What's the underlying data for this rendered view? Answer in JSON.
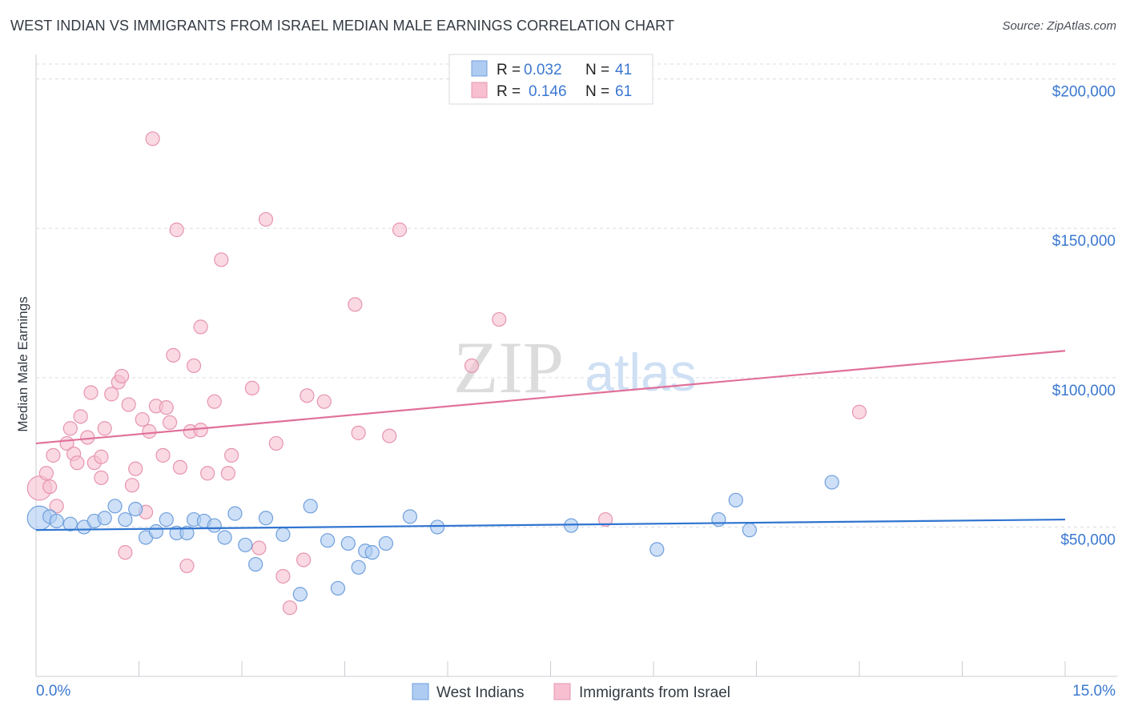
{
  "title": "WEST INDIAN VS IMMIGRANTS FROM ISRAEL MEDIAN MALE EARNINGS CORRELATION CHART",
  "source": "Source: ZipAtlas.com",
  "watermark": {
    "zip": "ZIP",
    "atlas": "atlas"
  },
  "colors": {
    "blue_fill": "#aecbf2",
    "blue_stroke": "#6f9fdc",
    "blue_line": "#2f74d0",
    "pink_fill": "#f7bfd0",
    "pink_stroke": "#e694b0",
    "pink_line": "#e0709a",
    "value_text": "#3b78d0",
    "grid": "#d9dce1"
  },
  "legend": {
    "rows": [
      {
        "r_label": "R =",
        "r_value": "0.032",
        "n_label": "N =",
        "n_value": "41"
      },
      {
        "r_label": "R =",
        "r_value": "0.146",
        "n_label": "N =",
        "n_value": "61"
      }
    ]
  },
  "chart_data": {
    "type": "scatter",
    "title": "WEST INDIAN VS IMMIGRANTS FROM ISRAEL MEDIAN MALE EARNINGS CORRELATION CHART",
    "xlabel": "",
    "ylabel": "Median Male Earnings",
    "xlim": [
      0,
      15
    ],
    "ylim": [
      0,
      205000
    ],
    "x_tick_labels": [
      "0.0%",
      "15.0%"
    ],
    "y_ticks": [
      50000,
      100000,
      150000,
      200000
    ],
    "y_tick_labels": [
      "$50,000",
      "$100,000",
      "$150,000",
      "$200,000"
    ],
    "grid": true,
    "legend_position": "top-center",
    "series": [
      {
        "name": "West Indians",
        "r": 0.032,
        "n": 41,
        "trend": {
          "x": [
            0,
            15
          ],
          "y": [
            49000,
            52500
          ]
        },
        "points": [
          {
            "x": 0.05,
            "y": 53000,
            "big": true
          },
          {
            "x": 0.2,
            "y": 53500
          },
          {
            "x": 0.3,
            "y": 52000
          },
          {
            "x": 0.5,
            "y": 51000
          },
          {
            "x": 0.7,
            "y": 50000
          },
          {
            "x": 0.85,
            "y": 52000
          },
          {
            "x": 1.0,
            "y": 53000
          },
          {
            "x": 1.15,
            "y": 57000
          },
          {
            "x": 1.3,
            "y": 52500
          },
          {
            "x": 1.45,
            "y": 56000
          },
          {
            "x": 1.6,
            "y": 46500
          },
          {
            "x": 1.75,
            "y": 48500
          },
          {
            "x": 1.9,
            "y": 52500
          },
          {
            "x": 2.05,
            "y": 48000
          },
          {
            "x": 2.2,
            "y": 48000
          },
          {
            "x": 2.3,
            "y": 52500
          },
          {
            "x": 2.45,
            "y": 52000
          },
          {
            "x": 2.6,
            "y": 50500
          },
          {
            "x": 2.75,
            "y": 46500
          },
          {
            "x": 2.9,
            "y": 54500
          },
          {
            "x": 3.05,
            "y": 44000
          },
          {
            "x": 3.2,
            "y": 37500
          },
          {
            "x": 3.35,
            "y": 53000
          },
          {
            "x": 3.6,
            "y": 47500
          },
          {
            "x": 3.85,
            "y": 27500
          },
          {
            "x": 4.0,
            "y": 57000
          },
          {
            "x": 4.25,
            "y": 45500
          },
          {
            "x": 4.4,
            "y": 29500
          },
          {
            "x": 4.55,
            "y": 44500
          },
          {
            "x": 4.7,
            "y": 36500
          },
          {
            "x": 4.8,
            "y": 42000
          },
          {
            "x": 4.9,
            "y": 41500
          },
          {
            "x": 5.1,
            "y": 44500
          },
          {
            "x": 5.45,
            "y": 53500
          },
          {
            "x": 5.85,
            "y": 50000
          },
          {
            "x": 7.8,
            "y": 50500
          },
          {
            "x": 9.05,
            "y": 42500
          },
          {
            "x": 9.95,
            "y": 52500
          },
          {
            "x": 10.2,
            "y": 59000
          },
          {
            "x": 10.4,
            "y": 49000
          },
          {
            "x": 11.6,
            "y": 65000
          }
        ]
      },
      {
        "name": "Immigrants from Israel",
        "r": 0.146,
        "n": 61,
        "trend": {
          "x": [
            0,
            15
          ],
          "y": [
            78000,
            109000
          ]
        },
        "points": [
          {
            "x": 0.05,
            "y": 63000,
            "big": true
          },
          {
            "x": 0.15,
            "y": 68000
          },
          {
            "x": 0.2,
            "y": 63500
          },
          {
            "x": 0.25,
            "y": 74000
          },
          {
            "x": 0.3,
            "y": 57000
          },
          {
            "x": 0.45,
            "y": 78000
          },
          {
            "x": 0.5,
            "y": 83000
          },
          {
            "x": 0.55,
            "y": 74500
          },
          {
            "x": 0.6,
            "y": 71500
          },
          {
            "x": 0.65,
            "y": 87000
          },
          {
            "x": 0.75,
            "y": 80000
          },
          {
            "x": 0.8,
            "y": 95000
          },
          {
            "x": 0.85,
            "y": 71500
          },
          {
            "x": 0.95,
            "y": 66500
          },
          {
            "x": 0.95,
            "y": 73500
          },
          {
            "x": 1.0,
            "y": 83000
          },
          {
            "x": 1.1,
            "y": 94500
          },
          {
            "x": 1.2,
            "y": 98500
          },
          {
            "x": 1.25,
            "y": 100500
          },
          {
            "x": 1.3,
            "y": 41500
          },
          {
            "x": 1.35,
            "y": 91000
          },
          {
            "x": 1.4,
            "y": 64000
          },
          {
            "x": 1.45,
            "y": 69500
          },
          {
            "x": 1.55,
            "y": 86000
          },
          {
            "x": 1.6,
            "y": 55000
          },
          {
            "x": 1.65,
            "y": 82000
          },
          {
            "x": 1.7,
            "y": 180000
          },
          {
            "x": 1.75,
            "y": 90500
          },
          {
            "x": 1.85,
            "y": 74000
          },
          {
            "x": 1.9,
            "y": 90000
          },
          {
            "x": 1.95,
            "y": 85000
          },
          {
            "x": 2.0,
            "y": 107500
          },
          {
            "x": 2.05,
            "y": 149500
          },
          {
            "x": 2.1,
            "y": 70000
          },
          {
            "x": 2.2,
            "y": 37000
          },
          {
            "x": 2.25,
            "y": 82000
          },
          {
            "x": 2.3,
            "y": 104000
          },
          {
            "x": 2.4,
            "y": 82500
          },
          {
            "x": 2.4,
            "y": 117000
          },
          {
            "x": 2.5,
            "y": 68000
          },
          {
            "x": 2.6,
            "y": 92000
          },
          {
            "x": 2.7,
            "y": 139500
          },
          {
            "x": 2.8,
            "y": 68000
          },
          {
            "x": 2.85,
            "y": 74000
          },
          {
            "x": 3.15,
            "y": 96500
          },
          {
            "x": 3.25,
            "y": 43000
          },
          {
            "x": 3.35,
            "y": 153000
          },
          {
            "x": 3.5,
            "y": 78000
          },
          {
            "x": 3.6,
            "y": 33500
          },
          {
            "x": 3.7,
            "y": 23000
          },
          {
            "x": 3.9,
            "y": 39000
          },
          {
            "x": 3.95,
            "y": 94000
          },
          {
            "x": 4.2,
            "y": 92000
          },
          {
            "x": 4.65,
            "y": 124500
          },
          {
            "x": 4.7,
            "y": 81500
          },
          {
            "x": 5.15,
            "y": 80500
          },
          {
            "x": 5.3,
            "y": 149500
          },
          {
            "x": 6.35,
            "y": 104000
          },
          {
            "x": 6.75,
            "y": 119500
          },
          {
            "x": 8.3,
            "y": 52500
          },
          {
            "x": 12.0,
            "y": 88500
          }
        ]
      }
    ]
  },
  "bottom_legend": [
    {
      "label": "West Indians"
    },
    {
      "label": "Immigrants from Israel"
    }
  ]
}
